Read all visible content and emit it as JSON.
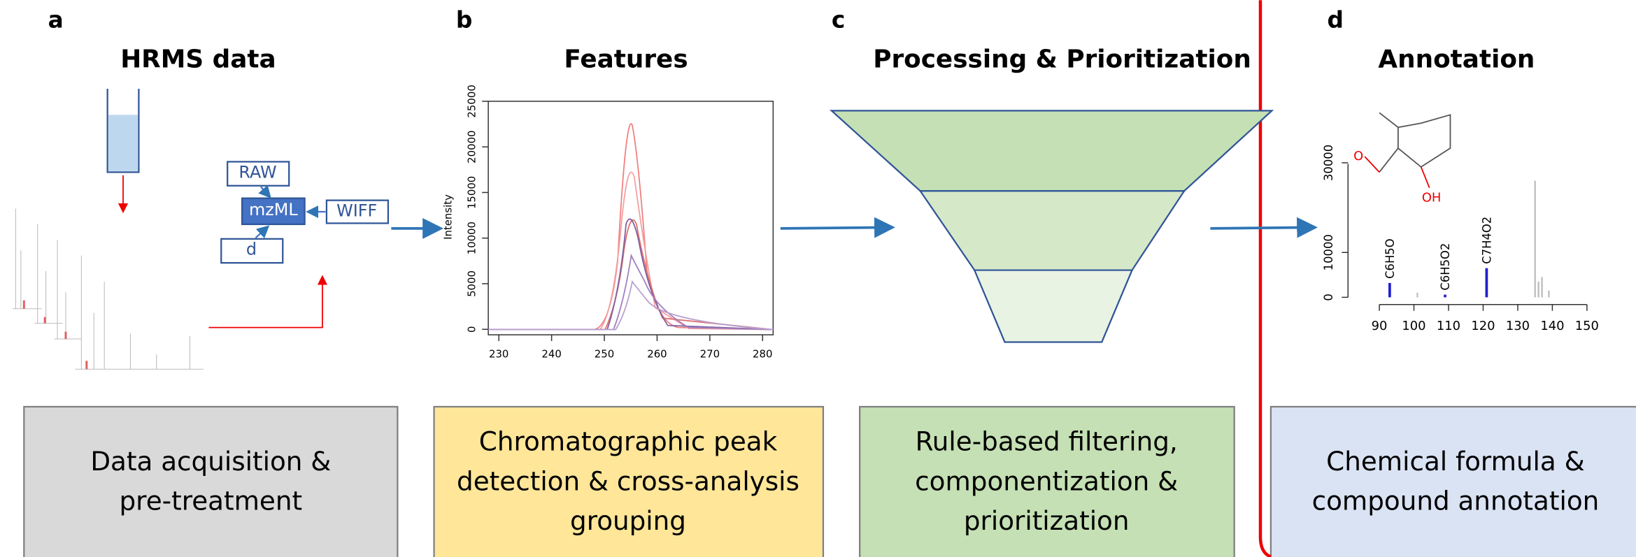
{
  "panels": [
    {
      "letter": "a",
      "title": "HRMS data",
      "description": [
        "Data acquisition &",
        "pre-treatment"
      ]
    },
    {
      "letter": "b",
      "title": "Features",
      "description": [
        "Chromatographic peak",
        "detection & cross-analysis",
        "grouping"
      ]
    },
    {
      "letter": "c",
      "title": "Processing & Prioritization",
      "description": [
        "Rule-based filtering,",
        "componentization &",
        "prioritization"
      ]
    },
    {
      "letter": "d",
      "title": "Annotation",
      "description": [
        "Chemical formula &",
        "compound annotation"
      ]
    }
  ],
  "file_formats": [
    "RAW",
    "mzML",
    "WIFF",
    "d"
  ],
  "features_plot": {
    "y_label": "Intensity",
    "xlim": [
      228,
      282
    ],
    "ylim": [
      -600,
      25000
    ],
    "xticks": [
      230,
      240,
      250,
      260,
      270,
      280
    ],
    "yticks": [
      0,
      5000,
      10000,
      15000,
      20000,
      25000
    ]
  },
  "spectrum": {
    "xlim": [
      84,
      156
    ],
    "ylim": [
      -1500,
      35000
    ],
    "xticks": [
      90,
      100,
      110,
      120,
      130,
      140,
      150
    ],
    "yticks": [
      0,
      10000,
      30000
    ],
    "labeled_peaks": [
      {
        "label": "C6H5O",
        "mz": 93,
        "intensity": 3200
      },
      {
        "label": "C6H5O2",
        "mz": 109,
        "intensity": 600
      },
      {
        "label": "C7H4O2",
        "mz": 121,
        "intensity": 6500
      }
    ],
    "other_peaks": {
      "mz": [
        101,
        135,
        136,
        137,
        139
      ],
      "intensity": [
        1000,
        26000,
        3500,
        4500,
        1500
      ]
    },
    "atom_labels": [
      "O",
      "OH"
    ]
  }
}
